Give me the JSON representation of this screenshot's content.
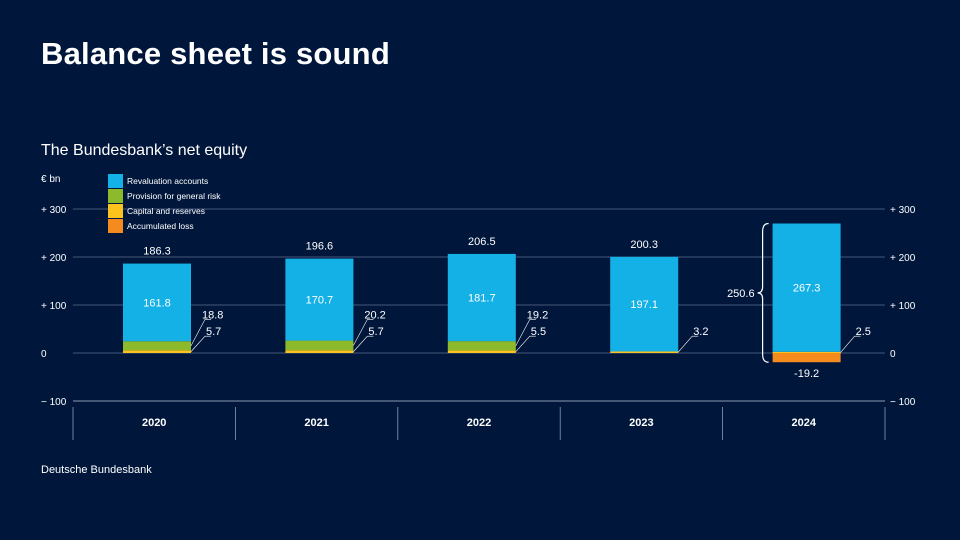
{
  "slide": {
    "title": "Balance sheet is sound",
    "source": "Deutsche Bundesbank"
  },
  "chart_data": {
    "type": "bar",
    "title": "The Bundesbank’s net equity",
    "unit_label": "€ bn",
    "stacked": true,
    "ylim": [
      -100,
      300
    ],
    "y_ticks": [
      {
        "value": 300,
        "label": "+ 300"
      },
      {
        "value": 200,
        "label": "+ 200"
      },
      {
        "value": 100,
        "label": "+ 100"
      },
      {
        "value": 0,
        "label": "0"
      },
      {
        "value": -100,
        "label": "− 100"
      }
    ],
    "categories": [
      "2020",
      "2021",
      "2022",
      "2023",
      "2024"
    ],
    "series": [
      {
        "name": "Revaluation accounts",
        "color": "#14b1e7",
        "values": [
          161.8,
          170.7,
          181.7,
          197.1,
          267.3
        ]
      },
      {
        "name": "Provision for general risk",
        "color": "#8dba2a",
        "values": [
          18.8,
          20.2,
          19.2,
          0,
          0
        ]
      },
      {
        "name": "Capital and reserves",
        "color": "#fcc31e",
        "values": [
          5.7,
          5.7,
          5.5,
          3.2,
          2.5
        ]
      },
      {
        "name": "Accumulated loss",
        "color": "#f58a1f",
        "values": [
          0,
          0,
          0,
          0,
          -19.2
        ]
      }
    ],
    "totals": [
      186.3,
      196.6,
      206.5,
      200.3,
      250.6
    ],
    "totals_labels": [
      "186.3",
      "196.6",
      "206.5",
      "200.3",
      "250.6"
    ],
    "segment_labels": {
      "revaluation": [
        "161.8",
        "170.7",
        "181.7",
        "197.1",
        "267.3"
      ],
      "provision": [
        "18.8",
        "20.2",
        "19.2",
        "",
        ""
      ],
      "capital": [
        "5.7",
        "5.7",
        "5.5",
        "3.2",
        "2.5"
      ],
      "loss": [
        "",
        "",
        "",
        "",
        "-19.2"
      ]
    },
    "legend_position": "top-left"
  }
}
